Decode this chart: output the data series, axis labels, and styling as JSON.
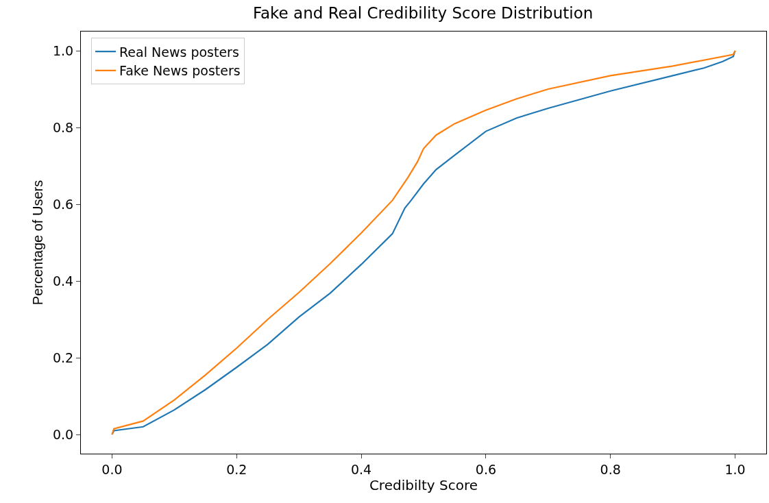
{
  "chart_data": {
    "type": "line",
    "title": "Fake and Real Credibility Score Distribution",
    "xlabel": "Credibilty Score",
    "ylabel": "Percentage of Users",
    "xlim": [
      -0.05,
      1.05
    ],
    "ylim": [
      -0.05,
      1.05
    ],
    "xticks": [
      {
        "value": 0,
        "label": "0.0"
      },
      0.2,
      0.4,
      0.6,
      0.8,
      {
        "value": 1,
        "label": "1.0"
      }
    ],
    "yticks": [
      {
        "value": 0,
        "label": "0.0"
      },
      0.2,
      0.4,
      0.6,
      0.8,
      {
        "value": 1,
        "label": "1.0"
      }
    ],
    "legend": "top left",
    "marker": "none",
    "line_style": "solid",
    "series": [
      {
        "name": "Real News posters",
        "color": "#1f77b4",
        "x": [
          0,
          0.003,
          0.05,
          0.1,
          0.15,
          0.2,
          0.25,
          0.3,
          0.35,
          0.4,
          0.45,
          0.47,
          0.48,
          0.5,
          0.52,
          0.55,
          0.6,
          0.65,
          0.7,
          0.8,
          0.9,
          0.95,
          0.98,
          0.997,
          1.0
        ],
        "values": [
          0.0,
          0.01,
          0.02,
          0.064,
          0.117,
          0.175,
          0.235,
          0.306,
          0.368,
          0.443,
          0.523,
          0.59,
          0.61,
          0.653,
          0.69,
          0.728,
          0.79,
          0.825,
          0.85,
          0.895,
          0.935,
          0.955,
          0.972,
          0.985,
          1.0
        ]
      },
      {
        "name": "Fake News posters",
        "color": "#ff7f0e",
        "x": [
          0,
          0.003,
          0.05,
          0.1,
          0.15,
          0.2,
          0.25,
          0.3,
          0.35,
          0.4,
          0.45,
          0.475,
          0.49,
          0.5,
          0.52,
          0.55,
          0.6,
          0.65,
          0.7,
          0.8,
          0.9,
          0.997,
          1.0
        ],
        "values": [
          0.0,
          0.015,
          0.035,
          0.09,
          0.155,
          0.225,
          0.3,
          0.37,
          0.445,
          0.525,
          0.61,
          0.67,
          0.71,
          0.745,
          0.78,
          0.81,
          0.845,
          0.875,
          0.9,
          0.935,
          0.96,
          0.99,
          1.0
        ]
      }
    ]
  }
}
